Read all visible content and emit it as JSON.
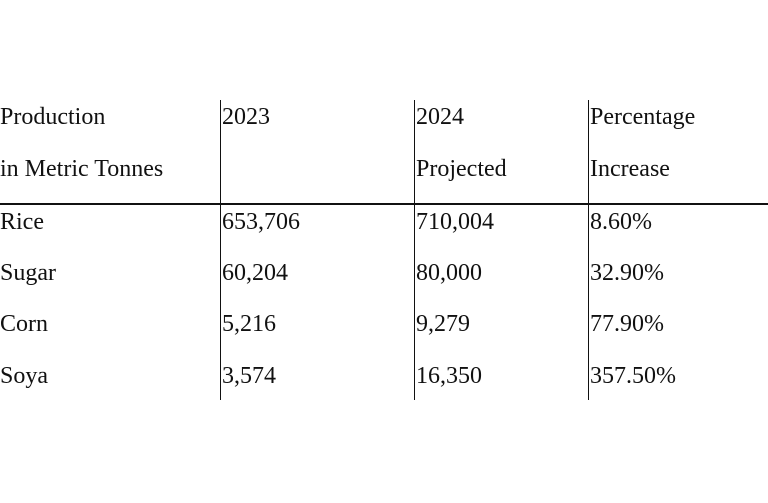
{
  "table": {
    "headers": [
      [
        "Production",
        "in Metric Tonnes"
      ],
      [
        "2023",
        ""
      ],
      [
        "2024",
        "Projected"
      ],
      [
        "Percentage",
        "Increase"
      ]
    ],
    "rows": [
      [
        "Rice",
        "653,706",
        "710,004",
        "8.60%"
      ],
      [
        "Sugar",
        "60,204",
        "80,000",
        "32.90%"
      ],
      [
        "Corn",
        "5,216",
        "9,279",
        "77.90%"
      ],
      [
        "Soya",
        "3,574",
        "16,350",
        "357.50%"
      ]
    ]
  }
}
